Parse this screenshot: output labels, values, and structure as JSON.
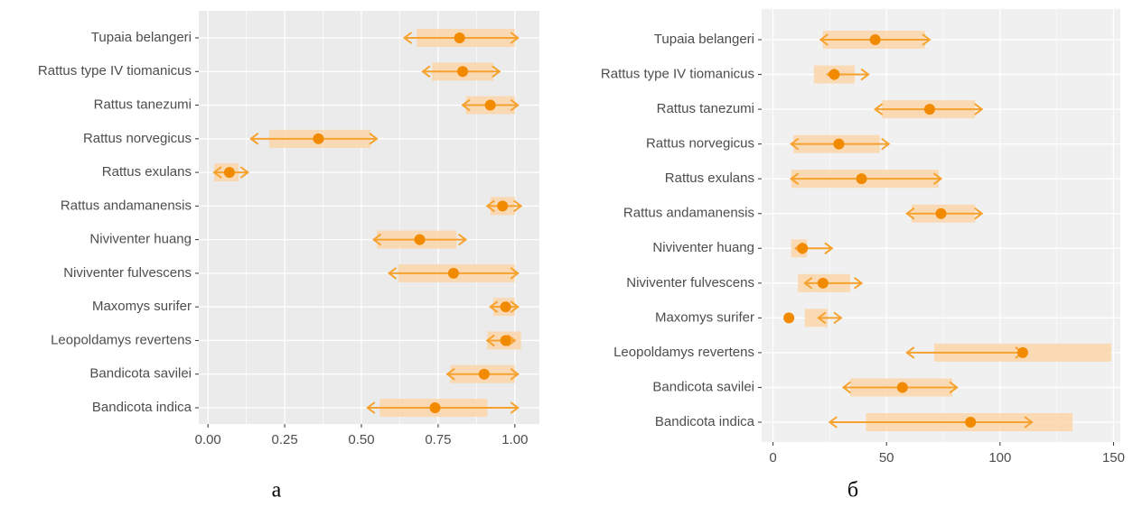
{
  "chart_data": [
    {
      "type": "interval",
      "panel_label": "а",
      "categories": [
        "Tupaia belangeri",
        "Rattus type IV tiomanicus",
        "Rattus tanezumi",
        "Rattus norvegicus",
        "Rattus exulans",
        "Rattus andamanensis",
        "Niviventer huang",
        "Niviventer fulvescens",
        "Maxomys surifer",
        "Leopoldamys revertens",
        "Bandicota savilei",
        "Bandicota indica"
      ],
      "values": [
        0.82,
        0.83,
        0.92,
        0.36,
        0.07,
        0.96,
        0.69,
        0.8,
        0.97,
        0.97,
        0.9,
        0.74
      ],
      "arrow_low": [
        0.64,
        0.7,
        0.83,
        0.14,
        0.02,
        0.91,
        0.54,
        0.59,
        0.92,
        0.91,
        0.78,
        0.52
      ],
      "arrow_high": [
        1.01,
        0.95,
        1.01,
        0.55,
        0.13,
        1.02,
        0.84,
        1.01,
        1.01,
        1.0,
        1.01,
        1.01
      ],
      "band_low": [
        0.68,
        0.73,
        0.84,
        0.2,
        0.02,
        0.92,
        0.55,
        0.62,
        0.93,
        0.91,
        0.79,
        0.56
      ],
      "band_high": [
        1.0,
        0.93,
        1.0,
        0.53,
        0.1,
        1.0,
        0.81,
        1.0,
        1.0,
        1.02,
        1.0,
        0.91
      ],
      "point_color": "#f28a00",
      "arrow_color": "#f7a22e",
      "band_color": "#fbd6aa",
      "xlim": [
        -0.03,
        1.08
      ],
      "xticks": [
        {
          "value": 0,
          "label": "0.00"
        },
        {
          "value": 0.25,
          "label": "0.25"
        },
        {
          "value": 0.5,
          "label": "0.50"
        },
        {
          "value": 0.75,
          "label": "0.75"
        },
        {
          "value": 1,
          "label": "1.00"
        }
      ],
      "grid": true
    },
    {
      "type": "interval",
      "panel_label": "б",
      "categories": [
        "Tupaia belangeri",
        "Rattus type IV tiomanicus",
        "Rattus tanezumi",
        "Rattus norvegicus",
        "Rattus exulans",
        "Rattus andamanensis",
        "Niviventer huang",
        "Niviventer fulvescens",
        "Maxomys surifer",
        "Leopoldamys revertens",
        "Bandicota savilei",
        "Bandicota indica"
      ],
      "values": [
        45,
        27,
        69,
        29,
        39,
        74,
        13,
        22,
        7,
        110,
        57,
        87
      ],
      "arrow_low": [
        21,
        24,
        45,
        8,
        8,
        59,
        10,
        14,
        20,
        59,
        31,
        25
      ],
      "arrow_high": [
        69,
        42,
        92,
        51,
        74,
        92,
        26,
        39,
        30,
        110,
        81,
        114
      ],
      "band_low": [
        22,
        18,
        48,
        9,
        8,
        61,
        8,
        11,
        14,
        71,
        34,
        41
      ],
      "band_high": [
        67,
        36,
        89,
        47,
        73,
        89,
        15,
        34,
        24,
        149,
        79,
        132
      ],
      "point_color": "#f28a00",
      "arrow_color": "#f7a22e",
      "band_color": "#fbd6aa",
      "xlim": [
        -5,
        153
      ],
      "xticks": [
        0,
        50,
        100,
        150
      ],
      "grid": true
    }
  ]
}
